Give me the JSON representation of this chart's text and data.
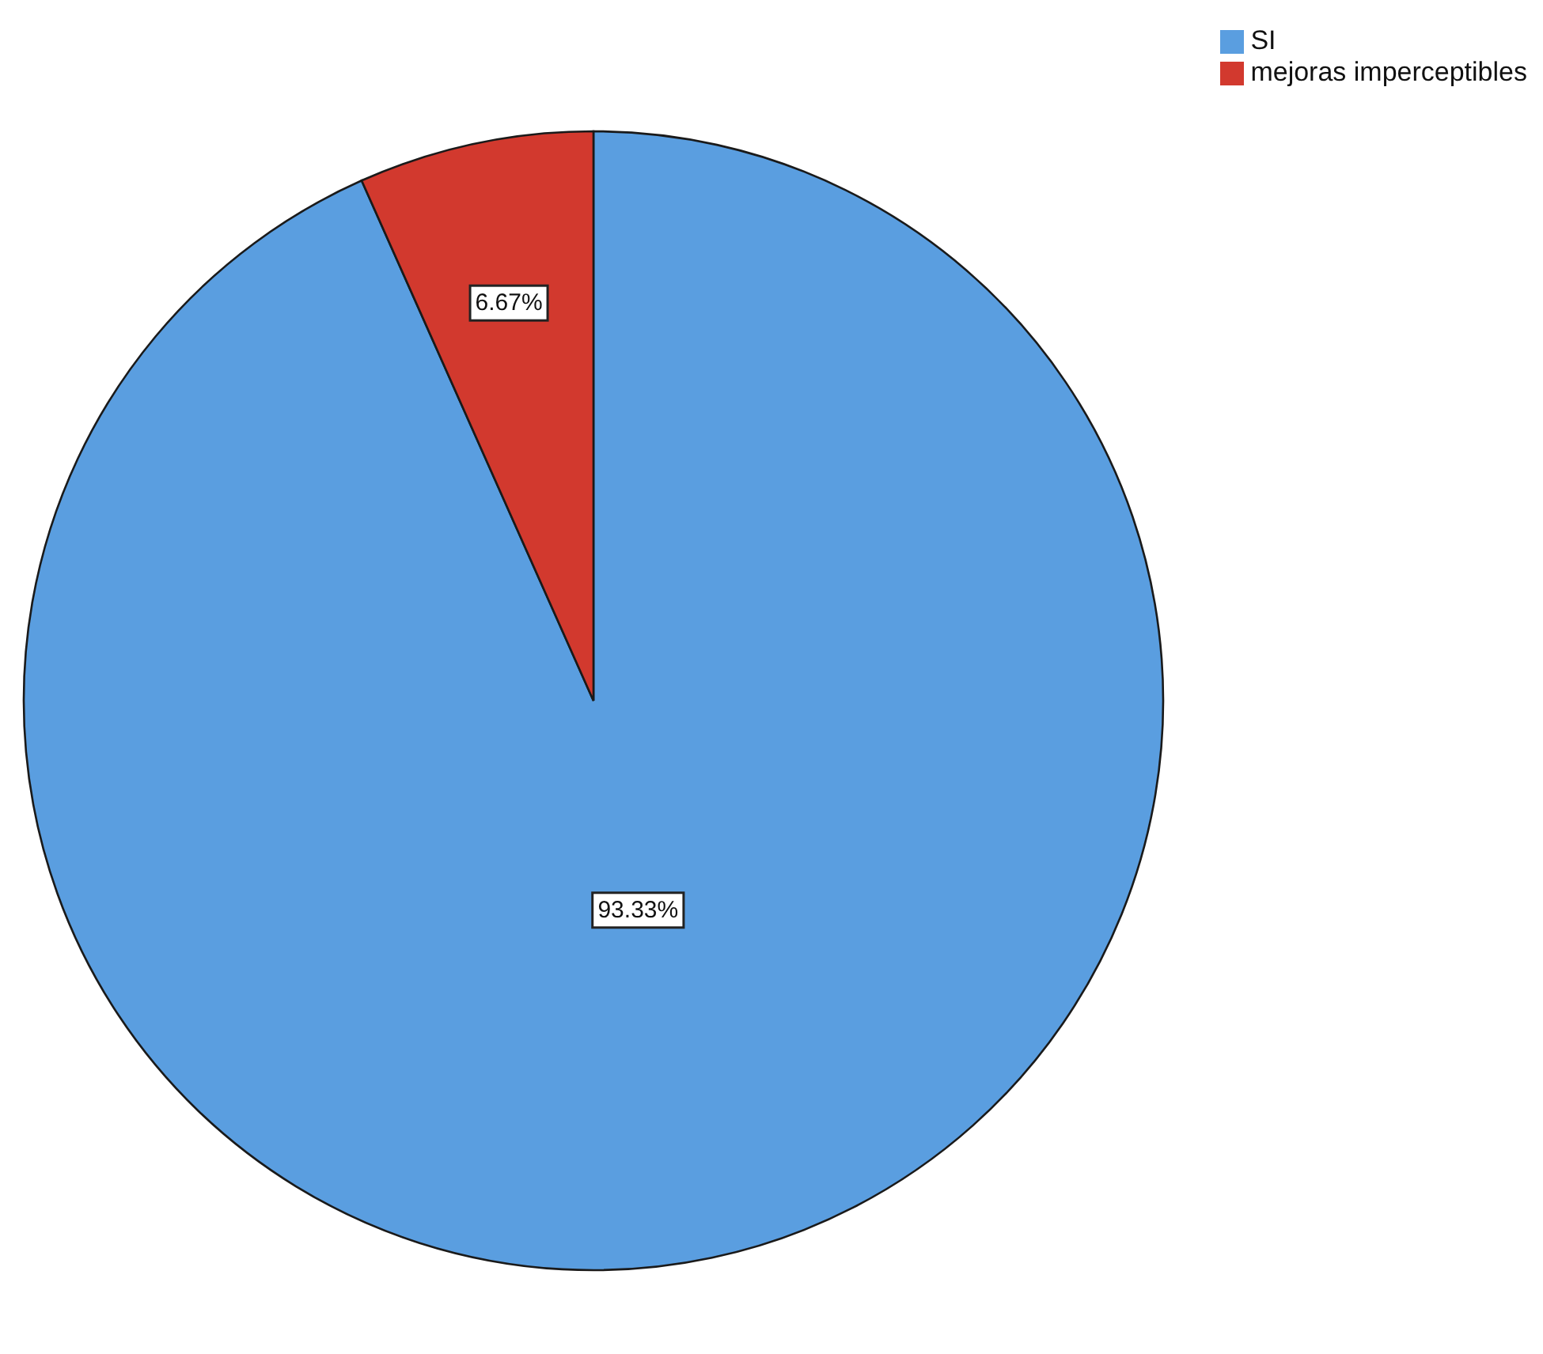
{
  "chart_data": {
    "type": "pie",
    "categories": [
      "SI",
      "mejoras imperceptibles"
    ],
    "values": [
      93.33,
      6.67
    ],
    "colors": [
      "#5a9ee0",
      "#d2392e"
    ],
    "value_labels": [
      "93.33%",
      "6.67%"
    ],
    "legend": "top right"
  }
}
